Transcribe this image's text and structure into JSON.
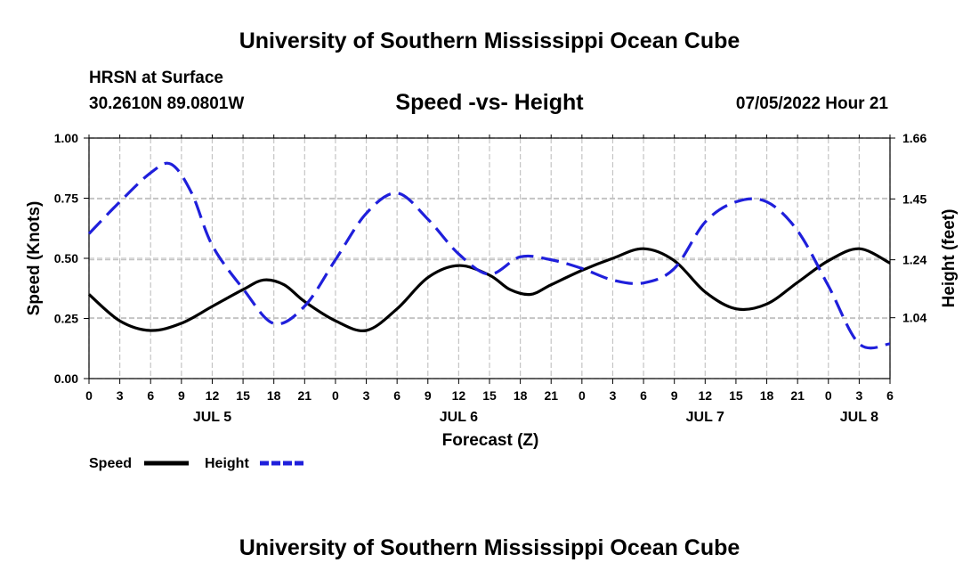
{
  "header": {
    "top_title": "University of Southern Mississippi Ocean Cube",
    "bottom_title": "University of Southern Mississippi Ocean Cube",
    "station": "HRSN at Surface",
    "coords": "30.2610N  89.0801W",
    "datetime": "07/05/2022 Hour 21"
  },
  "legend": {
    "speed_label": "Speed",
    "height_label": "Height"
  },
  "chart_data": {
    "type": "line",
    "title": "Speed -vs- Height",
    "xlabel": "Forecast (Z)",
    "ylabel_left": "Speed (Knots)",
    "ylabel_right": "Height (feet)",
    "x_hours_range": [
      0,
      78
    ],
    "x_tick_hours": [
      0,
      3,
      6,
      9,
      12,
      15,
      18,
      21,
      24,
      27,
      30,
      33,
      36,
      39,
      42,
      45,
      48,
      51,
      54,
      57,
      60,
      63,
      66,
      69,
      72,
      75,
      78
    ],
    "x_tick_labels": [
      "0",
      "3",
      "6",
      "9",
      "12",
      "15",
      "18",
      "21",
      "0",
      "3",
      "6",
      "9",
      "12",
      "15",
      "18",
      "21",
      "0",
      "3",
      "6",
      "9",
      "12",
      "15",
      "18",
      "21",
      "0",
      "3",
      "6"
    ],
    "day_labels": [
      {
        "label": "JUL 5",
        "hour": 12
      },
      {
        "label": "JUL 6",
        "hour": 36
      },
      {
        "label": "JUL 7",
        "hour": 60
      },
      {
        "label": "JUL 8",
        "hour": 75
      }
    ],
    "y_left": {
      "range": [
        0,
        1
      ],
      "ticks": [
        0,
        0.25,
        0.5,
        0.75,
        1.0
      ],
      "tick_labels": [
        "0.00",
        "0.25",
        "0.50",
        "0.75",
        "1.00"
      ]
    },
    "y_right": {
      "range": [
        0.83,
        1.66
      ],
      "ticks": [
        1.04,
        1.24,
        1.45,
        1.66
      ],
      "tick_labels": [
        "1.04",
        "1.24",
        "1.45",
        "1.66"
      ]
    },
    "grid": true,
    "series": [
      {
        "name": "Speed",
        "axis": "left",
        "color": "#000000",
        "style": "solid",
        "x": [
          0,
          3,
          6,
          9,
          12,
          15,
          17,
          19,
          21,
          24,
          27,
          30,
          33,
          36,
          39,
          41,
          43,
          45,
          48,
          51,
          54,
          57,
          60,
          63,
          66,
          69,
          72,
          75,
          78
        ],
        "values": [
          0.35,
          0.24,
          0.2,
          0.23,
          0.3,
          0.37,
          0.41,
          0.39,
          0.32,
          0.24,
          0.2,
          0.29,
          0.42,
          0.47,
          0.43,
          0.37,
          0.35,
          0.39,
          0.45,
          0.5,
          0.54,
          0.49,
          0.36,
          0.29,
          0.31,
          0.4,
          0.49,
          0.54,
          0.48
        ]
      },
      {
        "name": "Height",
        "axis": "right",
        "color": "#1f1fdb",
        "style": "dashed",
        "x": [
          0,
          3,
          6,
          8,
          10,
          12,
          15,
          18,
          21,
          24,
          27,
          30,
          33,
          36,
          39,
          42,
          45,
          48,
          51,
          54,
          57,
          60,
          63,
          66,
          69,
          72,
          75,
          78
        ],
        "values": [
          1.33,
          1.44,
          1.54,
          1.57,
          1.47,
          1.29,
          1.14,
          1.02,
          1.08,
          1.24,
          1.4,
          1.47,
          1.38,
          1.26,
          1.19,
          1.25,
          1.24,
          1.21,
          1.17,
          1.16,
          1.21,
          1.37,
          1.44,
          1.44,
          1.34,
          1.15,
          0.95,
          0.95
        ]
      }
    ]
  }
}
